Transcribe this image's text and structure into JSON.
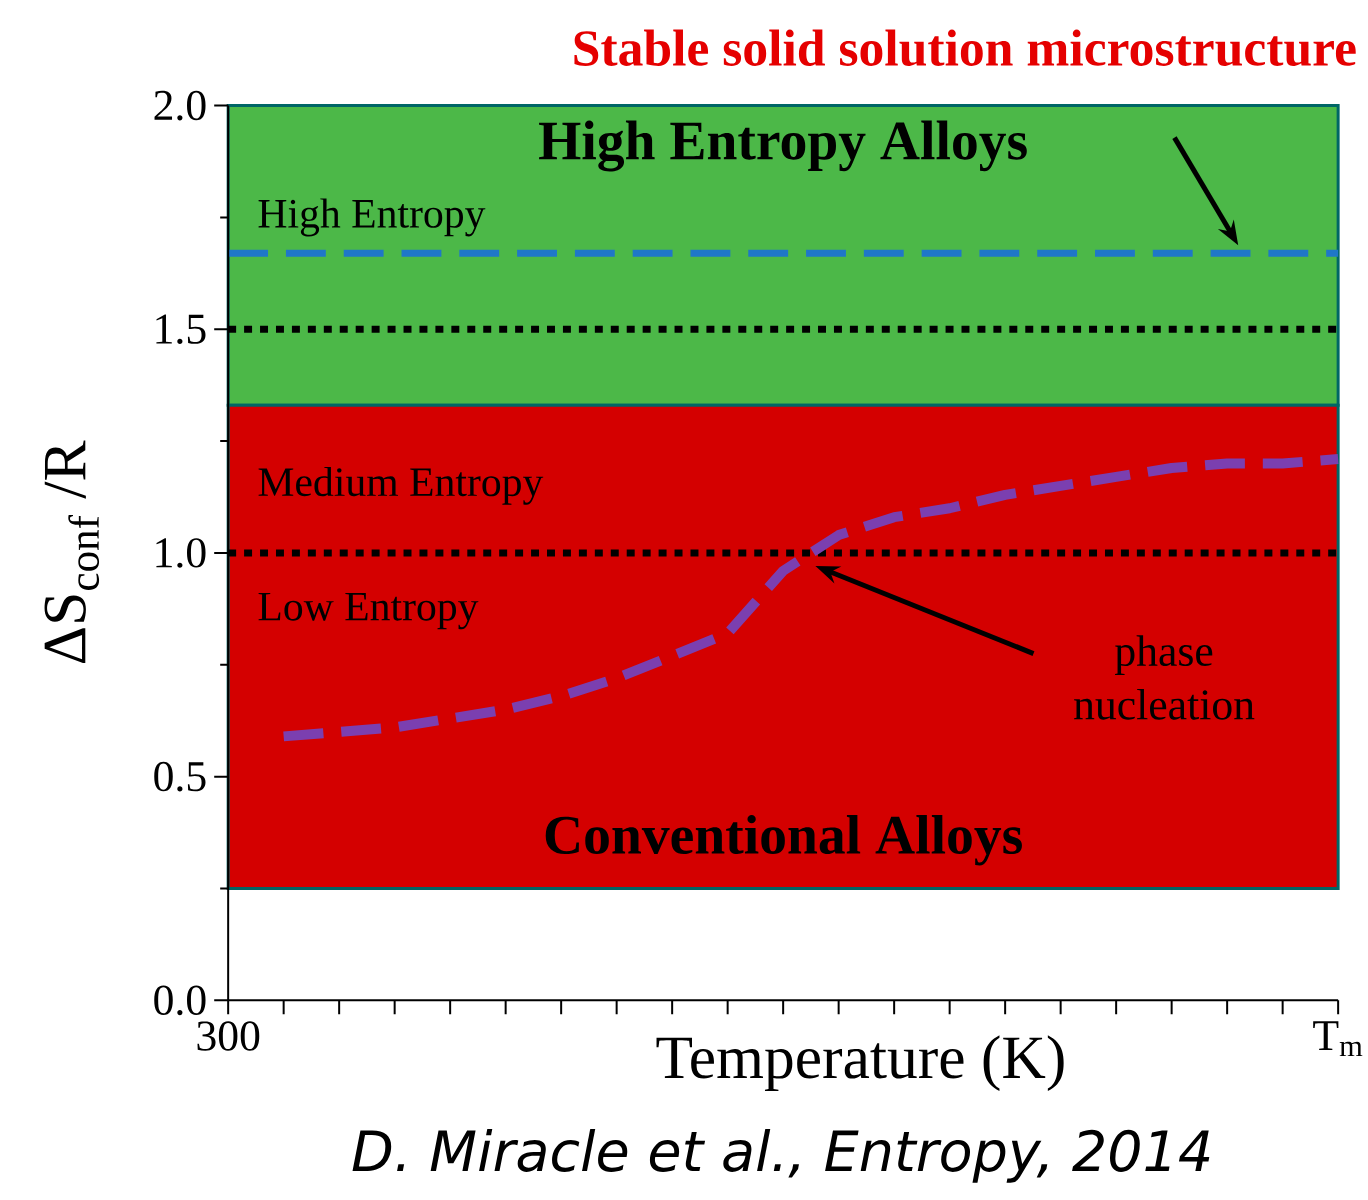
{
  "chart_data": {
    "type": "line",
    "xlabel": "Temperature (K)",
    "ylabel": "ΔS$_{conf}$ /R",
    "categories": [
      "300",
      null,
      null,
      null,
      null,
      null,
      null,
      null,
      null,
      null,
      null,
      null,
      null,
      null,
      null,
      null,
      null,
      null,
      null,
      null,
      "T$_{m}$"
    ],
    "ylim": [
      0,
      2.0
    ],
    "yticks": [
      {
        "value": 0,
        "label": "0.0"
      },
      0.5,
      {
        "value": 1,
        "label": "1.0"
      },
      1.5,
      {
        "value": 2,
        "label": "2.0"
      }
    ],
    "marker": "none",
    "line_style": "dashed",
    "series": [
      {
        "color": "#7b3fb0",
        "values": [
          null,
          0.59,
          0.6,
          0.61,
          0.63,
          0.65,
          0.68,
          0.72,
          0.77,
          0.82,
          0.96,
          1.04,
          1.08,
          1.1,
          1.13,
          1.15,
          1.17,
          1.19,
          1.2,
          1.2,
          1.21
        ]
      }
    ],
    "bands": [
      {
        "axis": "y",
        "from": 1.33,
        "to": 2.0,
        "label": "High Entropy Alloys",
        "color": "#4cb848"
      },
      {
        "axis": "y",
        "from": 0.25,
        "to": 1.33,
        "label": "Conventional Alloys",
        "color": "#d40000"
      }
    ],
    "ref_lines": [
      {
        "axis": "y",
        "value": 1.67,
        "color": "#1f77c8",
        "line_style": "dashed"
      },
      {
        "axis": "y",
        "value": 1.5,
        "color": "#000000",
        "line_style": "dotted"
      },
      {
        "axis": "y",
        "value": 1.0,
        "color": "#000000",
        "line_style": "dotted"
      }
    ],
    "annotations": [
      "Stable solid solution microstructure",
      {
        "text": "phase nucleation",
        "y": 0.98
      },
      "High Entropy",
      "Medium Entropy",
      "Low Entropy",
      "D. Miracle et al., Entropy, 2014"
    ]
  }
}
